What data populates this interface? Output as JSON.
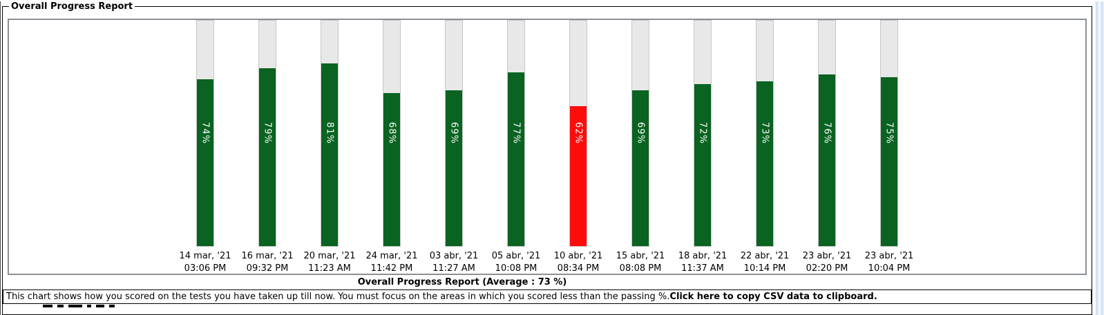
{
  "panel_title": "Overall Progress Report",
  "chart_data": {
    "type": "bar",
    "title": "Overall Progress Report",
    "caption": "Overall Progress Report (Average : 73 %)",
    "average_percent": 73,
    "ylim": [
      0,
      100
    ],
    "grid": false,
    "value_label_format": "percent",
    "bars": [
      {
        "date": "14 mar, '21",
        "time": "03:06 PM",
        "value": 74,
        "status": "pass"
      },
      {
        "date": "16 mar, '21",
        "time": "09:32 PM",
        "value": 79,
        "status": "pass"
      },
      {
        "date": "20 mar, '21",
        "time": "11:23 AM",
        "value": 81,
        "status": "pass"
      },
      {
        "date": "24 mar, '21",
        "time": "11:42 PM",
        "value": 68,
        "status": "pass"
      },
      {
        "date": "03 abr, '21",
        "time": "11:27 AM",
        "value": 69,
        "status": "pass"
      },
      {
        "date": "05 abr, '21",
        "time": "10:08 PM",
        "value": 77,
        "status": "pass"
      },
      {
        "date": "10 abr, '21",
        "time": "08:34 PM",
        "value": 62,
        "status": "fail"
      },
      {
        "date": "15 abr, '21",
        "time": "08:08 PM",
        "value": 69,
        "status": "pass"
      },
      {
        "date": "18 abr, '21",
        "time": "11:37 AM",
        "value": 72,
        "status": "pass"
      },
      {
        "date": "22 abr, '21",
        "time": "10:14 PM",
        "value": 73,
        "status": "pass"
      },
      {
        "date": "23 abr, '21",
        "time": "02:20 PM",
        "value": 76,
        "status": "pass"
      },
      {
        "date": "23 abr, '21",
        "time": "10:04 PM",
        "value": 75,
        "status": "pass"
      }
    ],
    "colors": {
      "pass": "#0a6321",
      "fail": "#fc0d0b",
      "track": "#e8e8e8",
      "track_border": "#c6c6c6",
      "chart_border": "#8a9096"
    }
  },
  "footer": {
    "description": "This chart shows how you scored on the tests you have taken up till now. You must focus on the areas in which you scored less than the passing %.",
    "csv_link": "Click here to copy CSV data to clipboard."
  }
}
